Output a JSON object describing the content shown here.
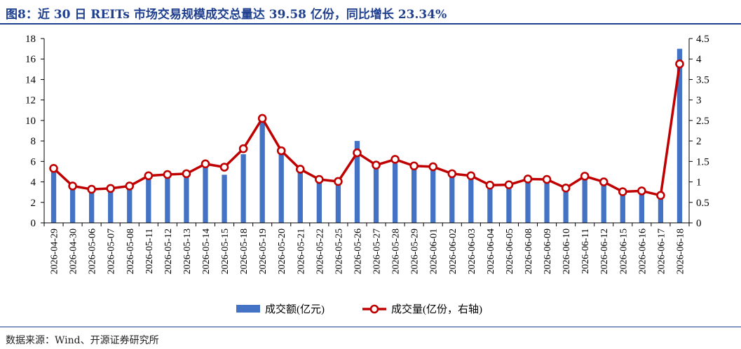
{
  "header": {
    "title": "图8：近 30 日 REITs 市场交易规模成交总量达 39.58 亿份，同比增长 23.34%"
  },
  "footer": {
    "source": "数据来源：Wind、开源证券研究所"
  },
  "colors": {
    "bar": "#4472c4",
    "line": "#c00000",
    "axis": "#000000",
    "title": "#1f3f8f"
  },
  "chart_data": {
    "type": "bar",
    "categories": [
      "2026-04-29",
      "2026-04-30",
      "2026-05-06",
      "2026-05-07",
      "2026-05-08",
      "2026-05-11",
      "2026-05-12",
      "2026-05-13",
      "2026-05-14",
      "2026-05-15",
      "2026-05-18",
      "2026-05-19",
      "2026-05-20",
      "2026-05-21",
      "2026-05-22",
      "2026-05-25",
      "2026-05-26",
      "2026-05-27",
      "2026-05-28",
      "2026-05-29",
      "2026-06-01",
      "2026-06-02",
      "2026-06-03",
      "2026-06-04",
      "2026-06-05",
      "2026-06-08",
      "2026-06-09",
      "2026-06-10",
      "2026-06-11",
      "2026-06-12",
      "2026-06-15",
      "2026-06-16",
      "2026-06-17",
      "2026-06-18"
    ],
    "series": [
      {
        "name": "成交额(亿元)",
        "type": "bar",
        "axis": "left",
        "values": [
          5.1,
          3.5,
          3.1,
          3.1,
          3.4,
          4.5,
          4.6,
          4.6,
          5.6,
          4.7,
          6.7,
          10.0,
          6.8,
          5.1,
          4.0,
          3.8,
          8.0,
          5.5,
          5.8,
          5.3,
          5.3,
          4.6,
          4.5,
          3.4,
          3.6,
          4.2,
          4.6,
          3.2,
          4.4,
          3.7,
          2.8,
          2.9,
          2.4,
          17.0
        ]
      },
      {
        "name": "成交量(亿份，右轴)",
        "type": "line",
        "axis": "right",
        "values": [
          1.33,
          0.9,
          0.82,
          0.84,
          0.9,
          1.15,
          1.18,
          1.2,
          1.44,
          1.36,
          1.81,
          2.55,
          1.76,
          1.31,
          1.06,
          1.01,
          1.71,
          1.41,
          1.55,
          1.39,
          1.37,
          1.2,
          1.15,
          0.92,
          0.93,
          1.07,
          1.06,
          0.85,
          1.14,
          1.0,
          0.76,
          0.78,
          0.67,
          3.88
        ]
      }
    ],
    "y_left": {
      "min": 0,
      "max": 18,
      "step": 2,
      "ticks": [
        "0",
        "2",
        "4",
        "6",
        "8",
        "10",
        "12",
        "14",
        "16",
        "18"
      ]
    },
    "y_right": {
      "min": 0,
      "max": 4.5,
      "step": 0.5,
      "ticks": [
        "0",
        "0.5",
        "1",
        "1.5",
        "2",
        "2.5",
        "3",
        "3.5",
        "4",
        "4.5"
      ]
    },
    "grid": false,
    "legend": "bottom-center"
  }
}
